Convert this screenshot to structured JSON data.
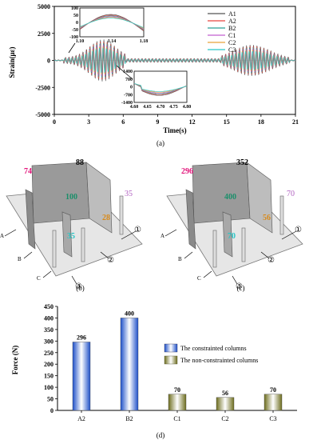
{
  "captions": {
    "a": "(a)",
    "b": "(b)",
    "c": "(c)",
    "d": "(d)"
  },
  "chart_data": [
    {
      "type": "line",
      "panel": "a",
      "xlabel": "Time(s)",
      "ylabel": "Strain(με)",
      "xlim": [
        0,
        21
      ],
      "ylim": [
        -5000,
        5000
      ],
      "x_ticks": [
        0,
        3,
        6,
        9,
        12,
        15,
        18,
        21
      ],
      "y_ticks": [
        5000,
        2500,
        0,
        -2500,
        -5000
      ],
      "series": [
        {
          "name": "A1",
          "color": "#555555"
        },
        {
          "name": "A2",
          "color": "#e8433e"
        },
        {
          "name": "B2",
          "color": "#2aa198"
        },
        {
          "name": "C1",
          "color": "#c25fd0"
        },
        {
          "name": "C2",
          "color": "#e8a23a"
        },
        {
          "name": "C3",
          "color": "#28c6c6"
        }
      ],
      "insets": [
        {
          "xlim": [
            1.1,
            1.18
          ],
          "ylim": [
            -100,
            100
          ],
          "x_ticks": [
            "1.10",
            "1.14",
            "1.18"
          ],
          "y_ticks": [
            "100",
            "50",
            "0",
            "-50",
            "-100"
          ]
        },
        {
          "xlim": [
            4.6,
            4.8
          ],
          "ylim": [
            -1400,
            1400
          ],
          "x_ticks": [
            "4.60",
            "4.65",
            "4.70",
            "4.75",
            "4.80"
          ],
          "y_ticks": [
            "1400",
            "700",
            "0",
            "-700",
            "-1400"
          ]
        }
      ]
    },
    {
      "type": "bar",
      "panel": "d",
      "ylabel": "Force (N)",
      "ylim": [
        0,
        450
      ],
      "y_ticks": [
        0,
        50,
        100,
        150,
        200,
        250,
        300,
        350,
        400,
        450
      ],
      "categories": [
        "A2",
        "B2",
        "C1",
        "C2",
        "C3"
      ],
      "values": [
        296,
        400,
        70,
        56,
        70
      ],
      "groups": [
        "constrained",
        "constrained",
        "non",
        "non",
        "non"
      ],
      "legend": [
        {
          "label": "The constrainted columns",
          "color": "#2a63d6"
        },
        {
          "label": "The non-constrainted columns",
          "color": "#7a7a2a"
        }
      ]
    }
  ],
  "diagram_b": {
    "v_top": "88",
    "v_left": "74",
    "v_center": "100",
    "v_right": "35",
    "v_front": "28",
    "v_bottom": "35",
    "axis": [
      "A",
      "B",
      "C"
    ],
    "marks": [
      "①",
      "②",
      "③"
    ]
  },
  "diagram_c": {
    "v_top": "352",
    "v_left": "296",
    "v_center": "400",
    "v_right": "70",
    "v_front": "56",
    "v_bottom": "70",
    "axis": [
      "A",
      "B",
      "C"
    ],
    "marks": [
      "①",
      "②",
      "③"
    ]
  }
}
